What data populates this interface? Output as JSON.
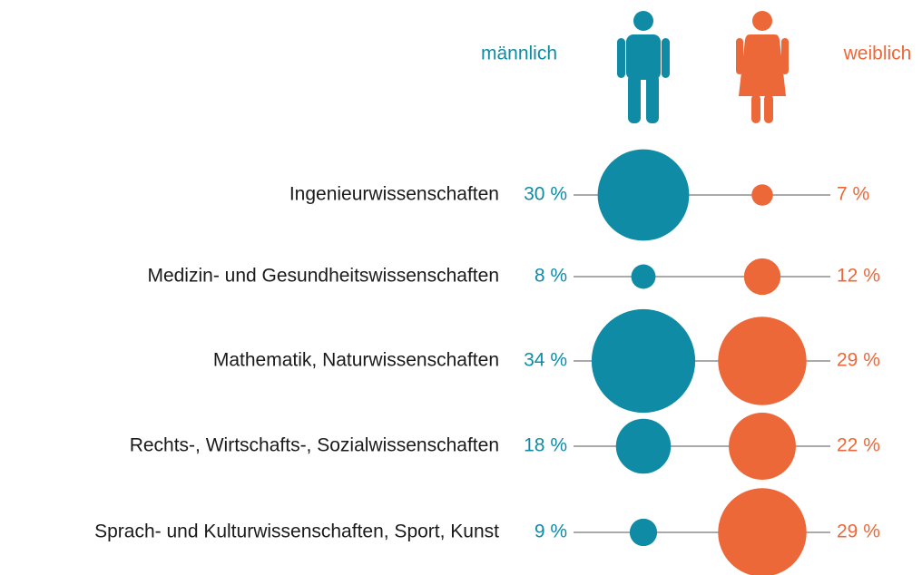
{
  "chart_data": {
    "type": "bubble",
    "categories": [
      "Ingenieurwissenschaften",
      "Medizin- und Gesundheitswissenschaften",
      "Mathematik, Naturwissenschaften",
      "Rechts-, Wirtschafts-, Sozialwissenschaften",
      "Sprach- und Kulturwissenschaften, Sport, Kunst"
    ],
    "series": [
      {
        "name": "männlich",
        "color": "#0f8ba6",
        "values": [
          30,
          8,
          34,
          18,
          9
        ],
        "value_labels": [
          "30 %",
          "8 %",
          "34 %",
          "18 %",
          "9 %"
        ]
      },
      {
        "name": "weiblich",
        "color": "#ec6838",
        "values": [
          7,
          12,
          29,
          22,
          29
        ],
        "value_labels": [
          "7 %",
          "12 %",
          "29 %",
          "22 %",
          "29 %"
        ]
      }
    ]
  }
}
